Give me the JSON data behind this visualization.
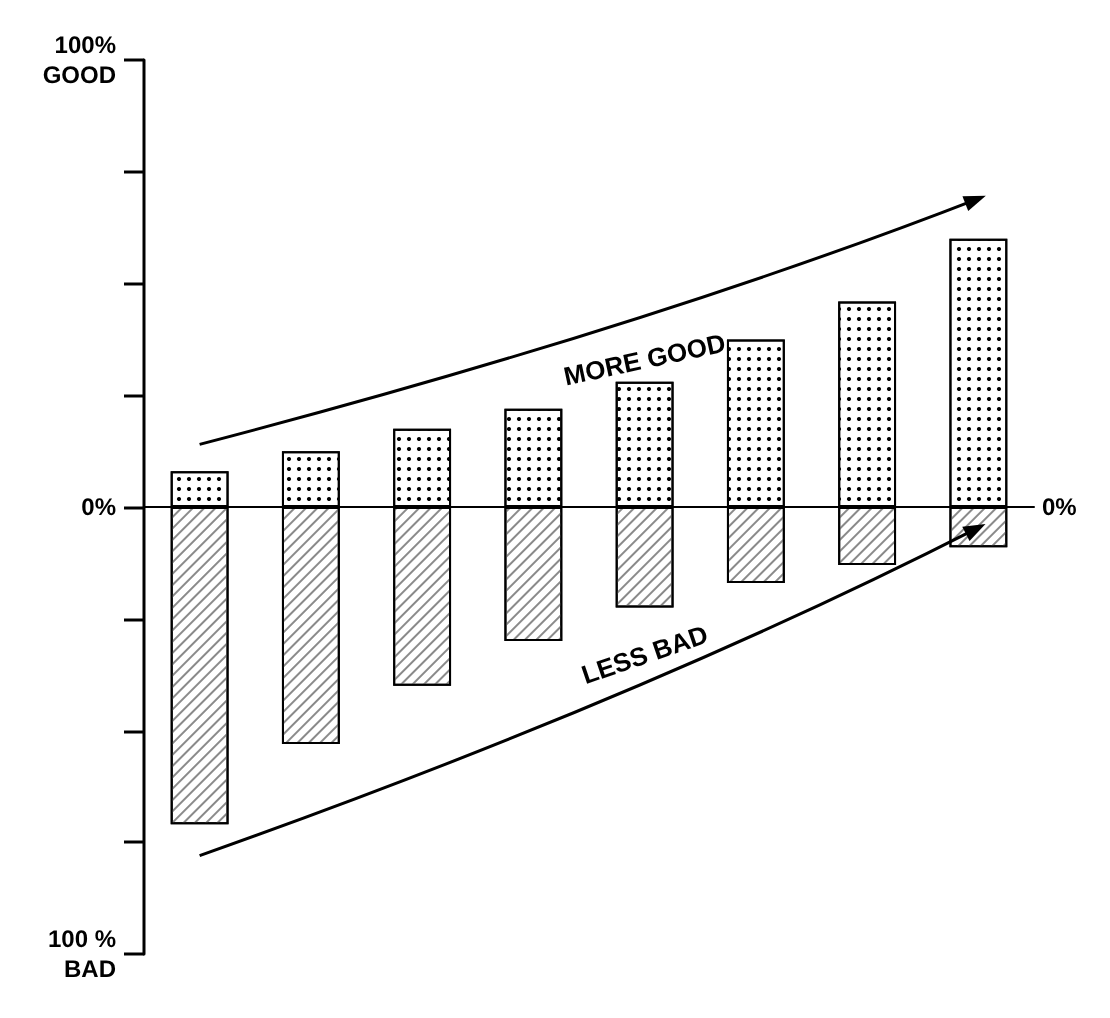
{
  "chart_data": {
    "type": "bar",
    "stacked": true,
    "categories": [
      null,
      null,
      null,
      null,
      null,
      null,
      null,
      null
    ],
    "series": [
      {
        "color": "#ffffff",
        "values": [
          8,
          12.5,
          17.5,
          22,
          28,
          37.5,
          46,
          60
        ]
      },
      {
        "color": "#ffffff",
        "values": [
          -71,
          -53,
          -40,
          -30,
          -22.5,
          -17,
          -13,
          -9
        ]
      }
    ],
    "ylim": [
      -100,
      100
    ],
    "yticks": [
      {
        "value": -100,
        "label": "100 %\nBAD"
      },
      {
        "value": -75,
        "label": null
      },
      {
        "value": -50,
        "label": null
      },
      {
        "value": -25,
        "label": null
      },
      {
        "value": 0,
        "label": "0%"
      },
      {
        "value": 25,
        "label": null
      },
      {
        "value": 50,
        "label": null
      },
      {
        "value": 75,
        "label": null
      },
      {
        "value": 100,
        "label": "100%\nGOOD"
      }
    ],
    "annotations": [
      "MORE GOOD",
      "LESS BAD",
      "0%"
    ]
  }
}
